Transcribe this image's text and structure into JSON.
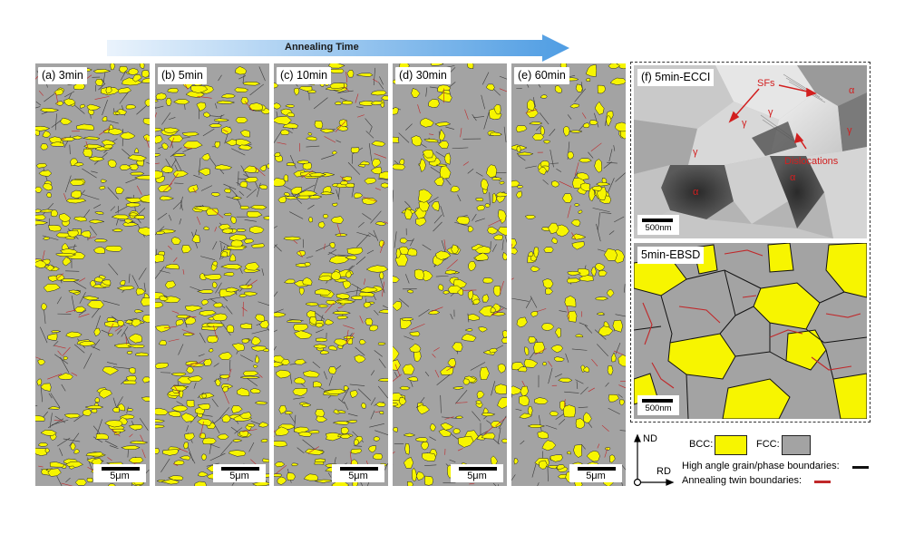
{
  "arrow": {
    "label": "Annealing Time"
  },
  "panels": [
    {
      "label": "(a) 3min",
      "scale": "5μm"
    },
    {
      "label": "(b) 5min",
      "scale": "5μm"
    },
    {
      "label": "(c) 10min",
      "scale": "5μm"
    },
    {
      "label": "(d) 30min",
      "scale": "5μm"
    },
    {
      "label": "(e) 60min",
      "scale": "5μm"
    }
  ],
  "ecci": {
    "label": "(f) 5min-ECCI",
    "scale": "500nm",
    "annotations": {
      "sfs": "SFs",
      "dislocations": "Dislocations",
      "gamma": "γ",
      "alpha": "α"
    }
  },
  "ebsd": {
    "label": "5min-EBSD",
    "scale": "500nm"
  },
  "axes": {
    "nd": "ND",
    "rd": "RD"
  },
  "legend": {
    "bcc": "BCC:",
    "fcc": "FCC:",
    "hagb": "High angle grain/phase boundaries:",
    "twin": "Annealing twin boundaries:"
  },
  "colors": {
    "bcc": "#f7f500",
    "fcc": "#a3a3a3",
    "twin": "#c0282a",
    "boundary": "#111111",
    "arrow_start": "#eaf3fc",
    "arrow_end": "#4f9de3"
  }
}
